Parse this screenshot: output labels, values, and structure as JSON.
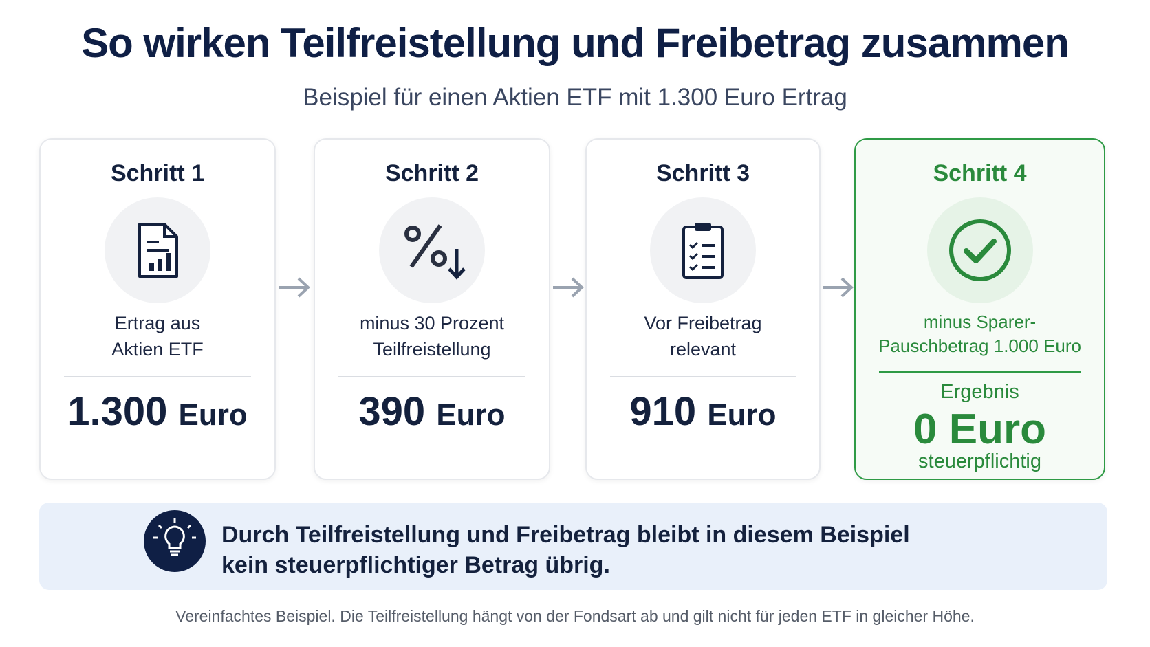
{
  "header": {
    "title": "So wirken Teilfreistellung und Freibetrag zusammen",
    "subtitle": "Beispiel für einen Aktien ETF mit 1.300 Euro Ertrag"
  },
  "steps": [
    {
      "label": "Schritt 1",
      "description": [
        "Ertrag aus",
        "Aktien ETF"
      ],
      "amount": "1.300",
      "unit": "Euro"
    },
    {
      "label": "Schritt 2",
      "description": [
        "minus 30 Prozent",
        "Teilfreistellung"
      ],
      "amount": "390",
      "unit": "Euro"
    },
    {
      "label": "Schritt 3",
      "description": [
        "Vor Freibetrag",
        "relevant"
      ],
      "amount": "910",
      "unit": "Euro"
    },
    {
      "label": "Schritt 4",
      "description": [
        "minus Sparer-",
        "Pauschbetrag 1.000 Euro"
      ],
      "result_label": "Ergebnis",
      "amount": "0 Euro",
      "note": "steuerpflichtig"
    }
  ],
  "callout": {
    "lines": [
      "Durch Teilfreistellung und Freibetrag bleibt in diesem Beispiel",
      "kein steuerpflichtiger Betrag übrig."
    ]
  },
  "footnote": "Vereinfachtes Beispiel. Die Teilfreistellung hängt von der Fondsart ab und gilt nicht für jeden ETF in gleicher Höhe."
}
